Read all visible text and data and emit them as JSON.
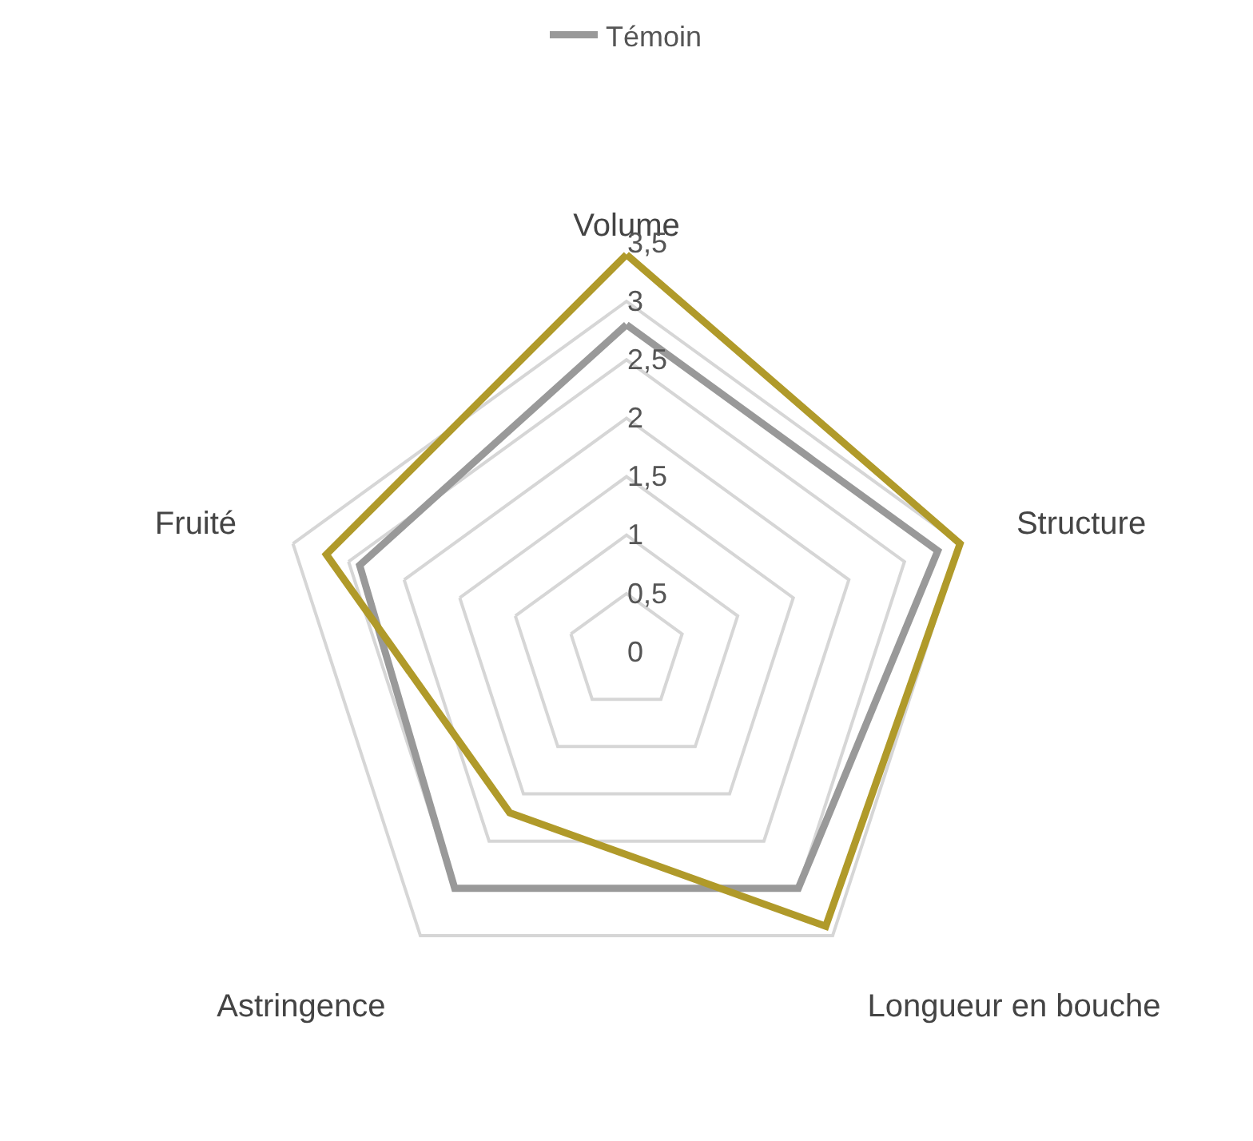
{
  "chart_data": {
    "type": "radar",
    "categories": [
      "Volume",
      "Structure",
      "Longueur en bouche",
      "Astringence",
      "Fruité"
    ],
    "series": [
      {
        "name": "Témoin",
        "color": "#999999",
        "values": [
          2.8,
          2.8,
          2.5,
          2.5,
          2.4
        ]
      },
      {
        "color": "#b09a2a",
        "values": [
          3.4,
          3.0,
          2.9,
          1.7,
          2.7
        ]
      }
    ],
    "ylim": [
      0,
      3.5
    ],
    "yticks": [
      0,
      {
        "value": 0.5,
        "label": "0,5"
      },
      1,
      {
        "value": 1.5,
        "label": "1,5"
      },
      2,
      {
        "value": 2.5,
        "label": "2,5"
      },
      3,
      {
        "value": 3.5,
        "label": "3,5"
      }
    ],
    "grid": true,
    "legend": "top",
    "marker": "none",
    "line_style": "solid"
  }
}
